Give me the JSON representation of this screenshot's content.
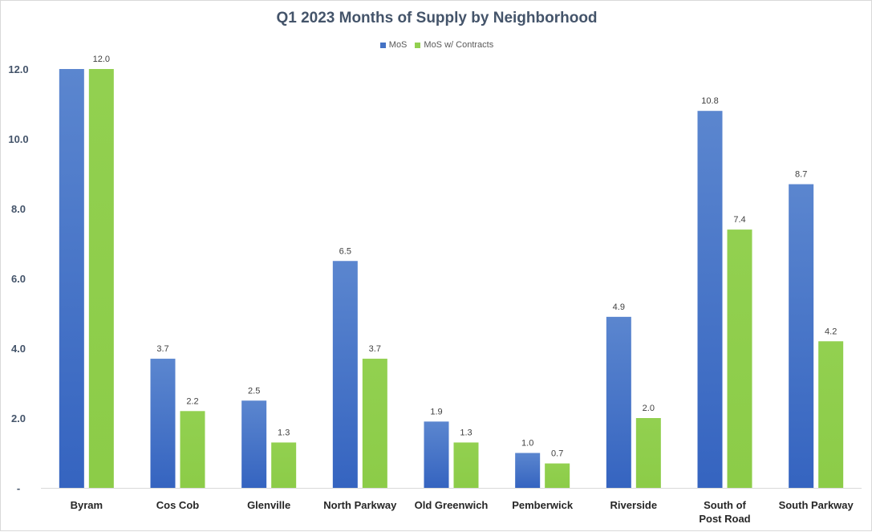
{
  "chart_data": {
    "type": "bar",
    "title": "Q1 2023 Months  of Supply  by Neighborhood",
    "categories": [
      "Byram",
      "Cos Cob",
      "Glenville",
      "North Parkway",
      "Old Greenwich",
      "Pemberwick",
      "Riverside",
      "South of Post Road",
      "South Parkway"
    ],
    "series": [
      {
        "name": "MoS",
        "color": "#4472c4",
        "values": [
          12.0,
          3.7,
          2.5,
          6.5,
          1.9,
          1.0,
          4.9,
          10.8,
          8.7
        ]
      },
      {
        "name": "MoS w/ Contracts",
        "color": "#92d050",
        "values": [
          12.0,
          2.2,
          1.3,
          3.7,
          1.3,
          0.7,
          2.0,
          7.4,
          4.2
        ]
      }
    ],
    "data_labels": [
      [
        "",
        "3.7",
        "2.5",
        "6.5",
        "1.9",
        "1.0",
        "4.9",
        "10.8",
        "8.7"
      ],
      [
        "12.0",
        "2.2",
        "1.3",
        "3.7",
        "1.3",
        "0.7",
        "2.0",
        "7.4",
        "4.2"
      ]
    ],
    "yticks": [
      "-",
      "2.0",
      "4.0",
      "6.0",
      "8.0",
      "10.0",
      "12.0"
    ],
    "ytick_values": [
      0,
      2,
      4,
      6,
      8,
      10,
      12
    ],
    "ylim": [
      0,
      12
    ],
    "xlabel": "",
    "ylabel": "",
    "grid": false,
    "legend_position": "top"
  }
}
